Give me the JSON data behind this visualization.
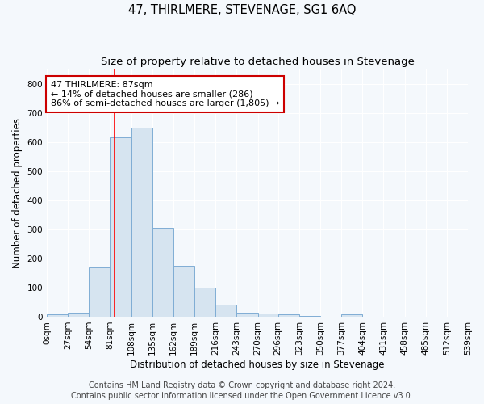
{
  "title": "47, THIRLMERE, STEVENAGE, SG1 6AQ",
  "subtitle": "Size of property relative to detached houses in Stevenage",
  "xlabel": "Distribution of detached houses by size in Stevenage",
  "ylabel": "Number of detached properties",
  "bar_color": "#d6e4f0",
  "bar_edge_color": "#7fadd4",
  "bin_edges": [
    0,
    27,
    54,
    81,
    108,
    135,
    162,
    189,
    216,
    243,
    270,
    296,
    323,
    350,
    377,
    404,
    431,
    458,
    485,
    512,
    539
  ],
  "bar_heights": [
    8,
    15,
    170,
    615,
    650,
    305,
    175,
    100,
    42,
    15,
    10,
    7,
    3,
    0,
    8,
    0,
    0,
    0,
    0,
    0
  ],
  "tick_labels": [
    "0sqm",
    "27sqm",
    "54sqm",
    "81sqm",
    "108sqm",
    "135sqm",
    "162sqm",
    "189sqm",
    "216sqm",
    "243sqm",
    "270sqm",
    "296sqm",
    "323sqm",
    "350sqm",
    "377sqm",
    "404sqm",
    "431sqm",
    "458sqm",
    "485sqm",
    "512sqm",
    "539sqm"
  ],
  "ylim": [
    0,
    850
  ],
  "yticks": [
    0,
    100,
    200,
    300,
    400,
    500,
    600,
    700,
    800
  ],
  "red_line_x": 87,
  "annotation_line1": "47 THIRLMERE: 87sqm",
  "annotation_line2": "← 14% of detached houses are smaller (286)",
  "annotation_line3": "86% of semi-detached houses are larger (1,805) →",
  "annotation_box_color": "#ffffff",
  "annotation_box_edge_color": "#cc0000",
  "footnote1": "Contains HM Land Registry data © Crown copyright and database right 2024.",
  "footnote2": "Contains public sector information licensed under the Open Government Licence v3.0.",
  "background_color": "#f4f8fc",
  "grid_color": "#ffffff",
  "title_fontsize": 10.5,
  "subtitle_fontsize": 9.5,
  "axis_label_fontsize": 8.5,
  "tick_fontsize": 7.5,
  "annotation_fontsize": 8,
  "footnote_fontsize": 7
}
